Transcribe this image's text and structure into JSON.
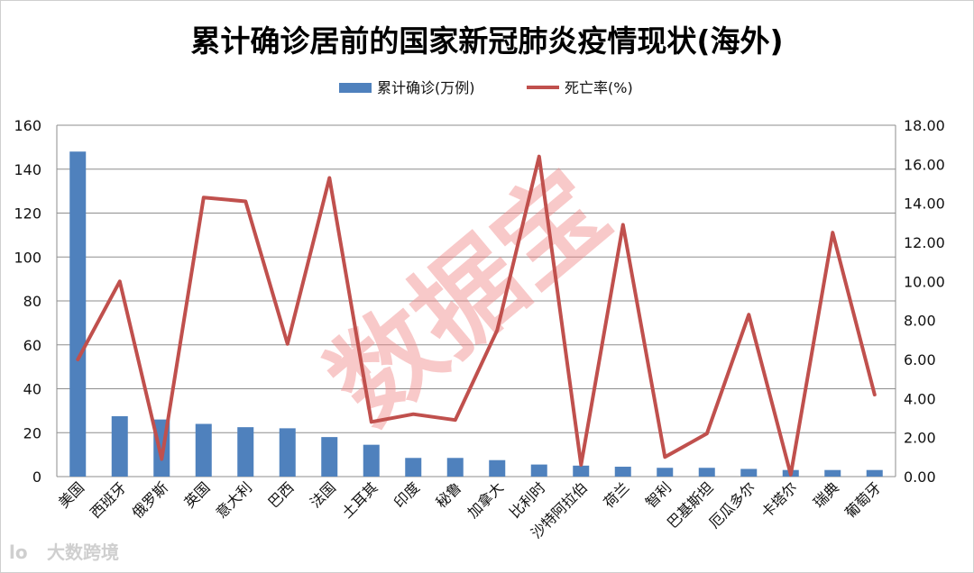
{
  "chart_data": {
    "type": "bar-line",
    "title": "累计确诊居前的国家新冠肺炎疫情现状(海外)",
    "categories": [
      "美国",
      "西班牙",
      "俄罗斯",
      "英国",
      "意大利",
      "巴西",
      "法国",
      "土耳其",
      "印度",
      "秘鲁",
      "加拿大",
      "比利时",
      "沙特阿拉伯",
      "荷兰",
      "智利",
      "巴基斯坦",
      "厄瓜多尔",
      "卡塔尔",
      "瑞典",
      "葡萄牙"
    ],
    "series": [
      {
        "name": "累计确诊(万例)",
        "type": "bar",
        "axis": "left",
        "color": "#4f81bd",
        "values": [
          148,
          27.5,
          26,
          24,
          22.5,
          22,
          18,
          14.5,
          8.5,
          8.5,
          7.5,
          5.5,
          5,
          4.5,
          4,
          4,
          3.5,
          3,
          3,
          3
        ]
      },
      {
        "name": "死亡率(%)",
        "type": "line",
        "axis": "right",
        "color": "#c0504d",
        "values": [
          6.0,
          10.0,
          0.9,
          14.3,
          14.1,
          6.8,
          15.3,
          2.8,
          3.2,
          2.9,
          7.5,
          16.4,
          0.6,
          12.9,
          1.0,
          2.2,
          8.3,
          0.1,
          12.5,
          4.2
        ]
      }
    ],
    "yleft": {
      "min": 0,
      "max": 160,
      "step": 20,
      "ticks": [
        "0",
        "20",
        "40",
        "60",
        "80",
        "100",
        "120",
        "140",
        "160"
      ]
    },
    "yright": {
      "min": 0,
      "max": 18,
      "step": 2,
      "ticks": [
        "0.00",
        "2.00",
        "4.00",
        "6.00",
        "8.00",
        "10.00",
        "12.00",
        "14.00",
        "16.00",
        "18.00"
      ]
    },
    "grid": true,
    "legend": "top-center"
  },
  "watermark": "数据宝",
  "footer": {
    "brand": "大数跨境",
    "logo_text": "lo"
  }
}
